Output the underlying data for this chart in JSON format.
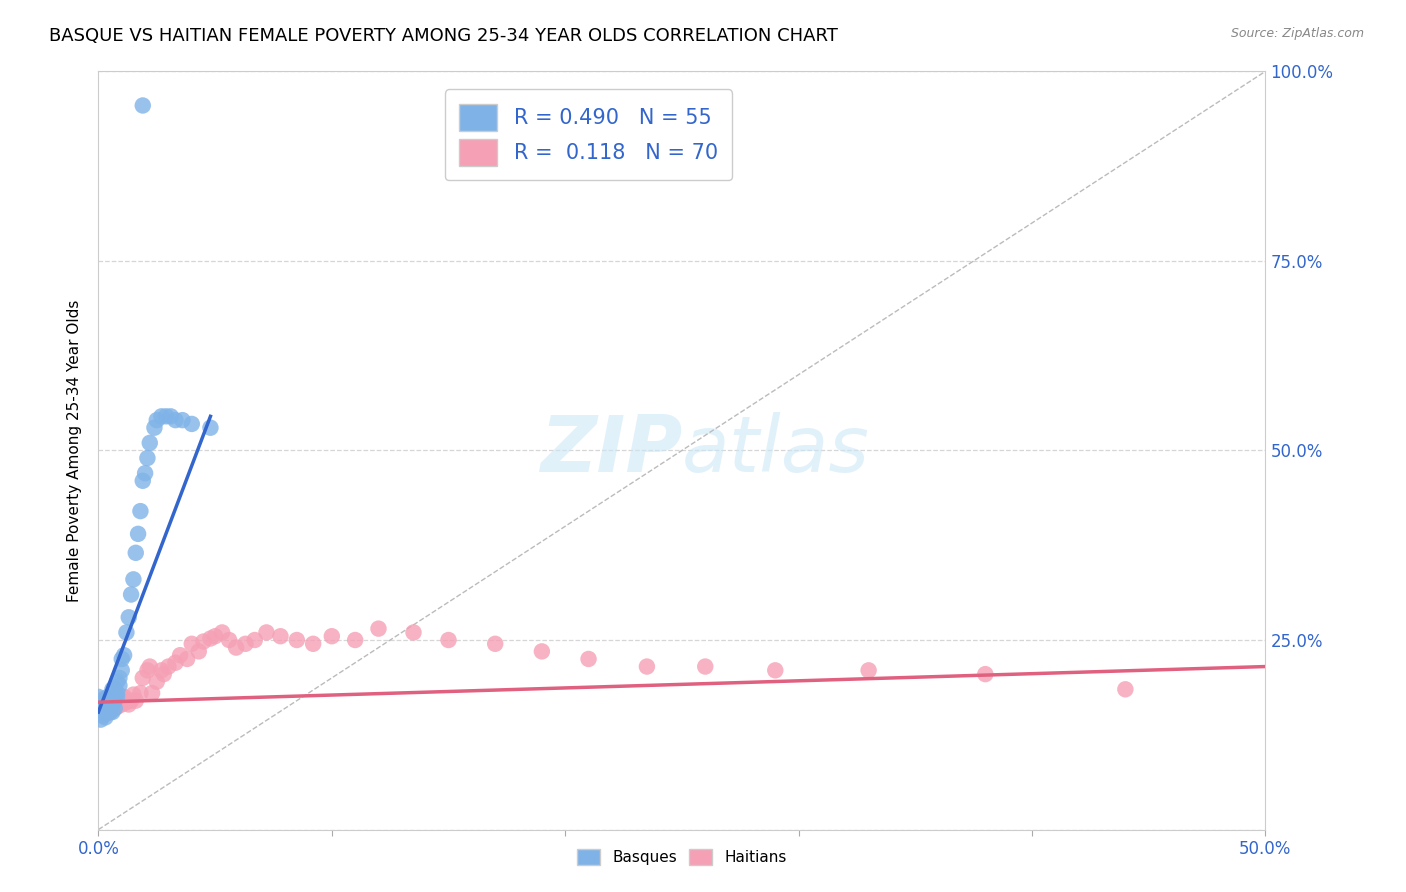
{
  "title": "BASQUE VS HAITIAN FEMALE POVERTY AMONG 25-34 YEAR OLDS CORRELATION CHART",
  "source": "Source: ZipAtlas.com",
  "ylabel": "Female Poverty Among 25-34 Year Olds",
  "xlim": [
    0.0,
    0.5
  ],
  "ylim": [
    0.0,
    1.0
  ],
  "background_color": "#ffffff",
  "grid_color": "#cccccc",
  "watermark_zip": "ZIP",
  "watermark_atlas": "atlas",
  "basque_color": "#7fb3e8",
  "haitian_color": "#f5a0b5",
  "basque_line_color": "#3366cc",
  "haitian_line_color": "#e06080",
  "ref_line_color": "#bbbbbb",
  "title_fontsize": 13,
  "axis_label_fontsize": 11,
  "tick_fontsize": 12,
  "legend_fontsize": 15,
  "basque_x": [
    0.0,
    0.001,
    0.001,
    0.002,
    0.002,
    0.002,
    0.002,
    0.003,
    0.003,
    0.003,
    0.003,
    0.004,
    0.004,
    0.004,
    0.005,
    0.005,
    0.005,
    0.005,
    0.006,
    0.006,
    0.006,
    0.006,
    0.007,
    0.007,
    0.007,
    0.007,
    0.008,
    0.008,
    0.008,
    0.009,
    0.009,
    0.01,
    0.01,
    0.011,
    0.012,
    0.013,
    0.014,
    0.015,
    0.016,
    0.017,
    0.018,
    0.019,
    0.02,
    0.021,
    0.022,
    0.024,
    0.025,
    0.027,
    0.029,
    0.031,
    0.033,
    0.036,
    0.04,
    0.048,
    0.019
  ],
  "basque_y": [
    0.175,
    0.16,
    0.145,
    0.17,
    0.155,
    0.168,
    0.15,
    0.16,
    0.17,
    0.155,
    0.148,
    0.175,
    0.158,
    0.163,
    0.17,
    0.165,
    0.155,
    0.16,
    0.175,
    0.185,
    0.165,
    0.155,
    0.175,
    0.185,
    0.17,
    0.16,
    0.18,
    0.195,
    0.175,
    0.2,
    0.19,
    0.21,
    0.225,
    0.23,
    0.26,
    0.28,
    0.31,
    0.33,
    0.365,
    0.39,
    0.42,
    0.46,
    0.47,
    0.49,
    0.51,
    0.53,
    0.54,
    0.545,
    0.545,
    0.545,
    0.54,
    0.54,
    0.535,
    0.53,
    0.955
  ],
  "haitian_x": [
    0.001,
    0.001,
    0.001,
    0.002,
    0.002,
    0.002,
    0.003,
    0.003,
    0.003,
    0.003,
    0.004,
    0.004,
    0.005,
    0.005,
    0.005,
    0.006,
    0.006,
    0.007,
    0.007,
    0.008,
    0.008,
    0.009,
    0.01,
    0.01,
    0.011,
    0.012,
    0.013,
    0.014,
    0.015,
    0.016,
    0.018,
    0.019,
    0.021,
    0.022,
    0.023,
    0.025,
    0.027,
    0.028,
    0.03,
    0.033,
    0.035,
    0.038,
    0.04,
    0.043,
    0.045,
    0.048,
    0.05,
    0.053,
    0.056,
    0.059,
    0.063,
    0.067,
    0.072,
    0.078,
    0.085,
    0.092,
    0.1,
    0.11,
    0.12,
    0.135,
    0.15,
    0.17,
    0.19,
    0.21,
    0.235,
    0.26,
    0.29,
    0.33,
    0.38,
    0.44
  ],
  "haitian_y": [
    0.17,
    0.165,
    0.155,
    0.172,
    0.168,
    0.16,
    0.17,
    0.165,
    0.158,
    0.152,
    0.17,
    0.16,
    0.172,
    0.165,
    0.155,
    0.168,
    0.158,
    0.17,
    0.16,
    0.175,
    0.162,
    0.168,
    0.175,
    0.165,
    0.175,
    0.168,
    0.165,
    0.17,
    0.178,
    0.17,
    0.18,
    0.2,
    0.21,
    0.215,
    0.18,
    0.195,
    0.21,
    0.205,
    0.215,
    0.22,
    0.23,
    0.225,
    0.245,
    0.235,
    0.248,
    0.252,
    0.255,
    0.26,
    0.25,
    0.24,
    0.245,
    0.25,
    0.26,
    0.255,
    0.25,
    0.245,
    0.255,
    0.25,
    0.265,
    0.26,
    0.25,
    0.245,
    0.235,
    0.225,
    0.215,
    0.215,
    0.21,
    0.21,
    0.205,
    0.185
  ],
  "basque_line_x": [
    0.0,
    0.048
  ],
  "basque_line_y": [
    0.155,
    0.545
  ],
  "haitian_line_x": [
    0.0,
    0.5
  ],
  "haitian_line_y": [
    0.168,
    0.215
  ]
}
